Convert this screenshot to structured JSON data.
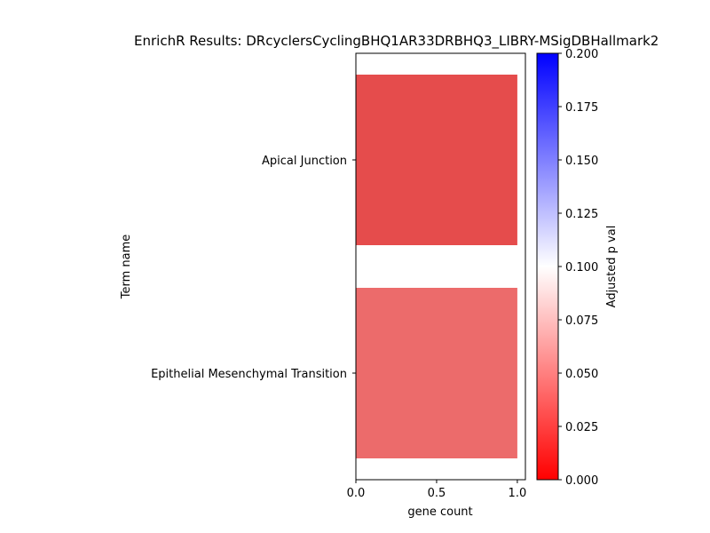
{
  "chart_data": {
    "type": "bar",
    "orientation": "horizontal",
    "title": "EnrichR Results: DRcyclersCyclingBHQ1AR33DRBHQ3_LIBRY-MSigDBHallmark2",
    "xlabel": "gene count",
    "ylabel": "Term name",
    "categories": [
      "Apical Junction",
      "Epithelial Mesenchymal Transition"
    ],
    "values": [
      1,
      1
    ],
    "adjusted_p_values": [
      0.03,
      0.05
    ],
    "bar_colors": [
      "#e54c4c",
      "#ec6b6b"
    ],
    "xlim": [
      0,
      1.05
    ],
    "xticks": [
      "0.0",
      "0.5",
      "1.0"
    ],
    "grid": false,
    "colorbar": {
      "label": "Adjusted p val",
      "range": [
        0,
        0.2
      ],
      "ticks": [
        "0.000",
        "0.025",
        "0.050",
        "0.075",
        "0.100",
        "0.125",
        "0.150",
        "0.175",
        "0.200"
      ],
      "colors": [
        "#ff0000",
        "#ffffff",
        "#0000ff"
      ]
    }
  }
}
